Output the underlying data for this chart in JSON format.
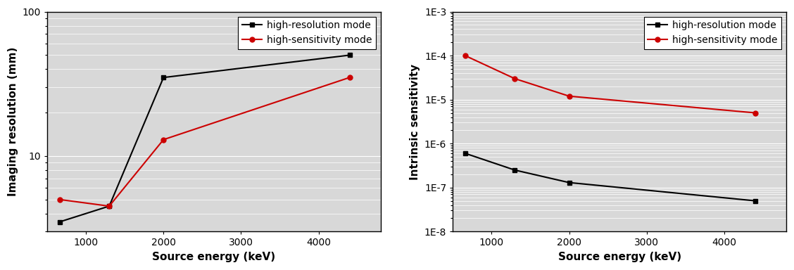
{
  "left_chart": {
    "xlabel": "Source energy (keV)",
    "ylabel": "Imaging resolution (mm)",
    "xlim": [
      500,
      4800
    ],
    "ylim": [
      3,
      100
    ],
    "xticks": [
      1000,
      2000,
      3000,
      4000
    ],
    "high_resolution": {
      "x": [
        660,
        1300,
        2000,
        4400
      ],
      "y": [
        3.5,
        4.5,
        35,
        50
      ],
      "color": "#000000",
      "label": "high-resolution mode",
      "marker": "s",
      "markersize": 5
    },
    "high_sensitivity": {
      "x": [
        660,
        1300,
        2000,
        4400
      ],
      "y": [
        5.0,
        4.5,
        13,
        35
      ],
      "color": "#cc0000",
      "label": "high-sensitivity mode",
      "marker": "o",
      "markersize": 5
    }
  },
  "right_chart": {
    "xlabel": "Source energy (keV)",
    "ylabel": "Intrinsic sensitivity",
    "xlim": [
      500,
      4800
    ],
    "ylim": [
      1e-08,
      0.001
    ],
    "xticks": [
      1000,
      2000,
      3000,
      4000
    ],
    "yticks": [
      1e-08,
      1e-07,
      1e-06,
      1e-05,
      0.0001
    ],
    "ytick_labels": [
      "1E-8",
      "1E-7",
      "1E-6",
      "1E-5",
      "1E-4"
    ],
    "high_resolution": {
      "x": [
        660,
        1300,
        2000,
        4400
      ],
      "y": [
        6e-07,
        2.5e-07,
        1.3e-07,
        5e-08
      ],
      "color": "#000000",
      "label": "high-resolution mode",
      "marker": "s",
      "markersize": 5
    },
    "high_sensitivity": {
      "x": [
        660,
        1300,
        2000,
        4400
      ],
      "y": [
        0.0001,
        3e-05,
        1.2e-05,
        5e-06
      ],
      "color": "#cc0000",
      "label": "high-sensitivity mode",
      "marker": "o",
      "markersize": 5
    }
  },
  "background_color": "#d8d8d8",
  "grid_color": "#ffffff",
  "font_size": 10,
  "label_fontsize": 11,
  "fig_width": 11.28,
  "fig_height": 3.84
}
